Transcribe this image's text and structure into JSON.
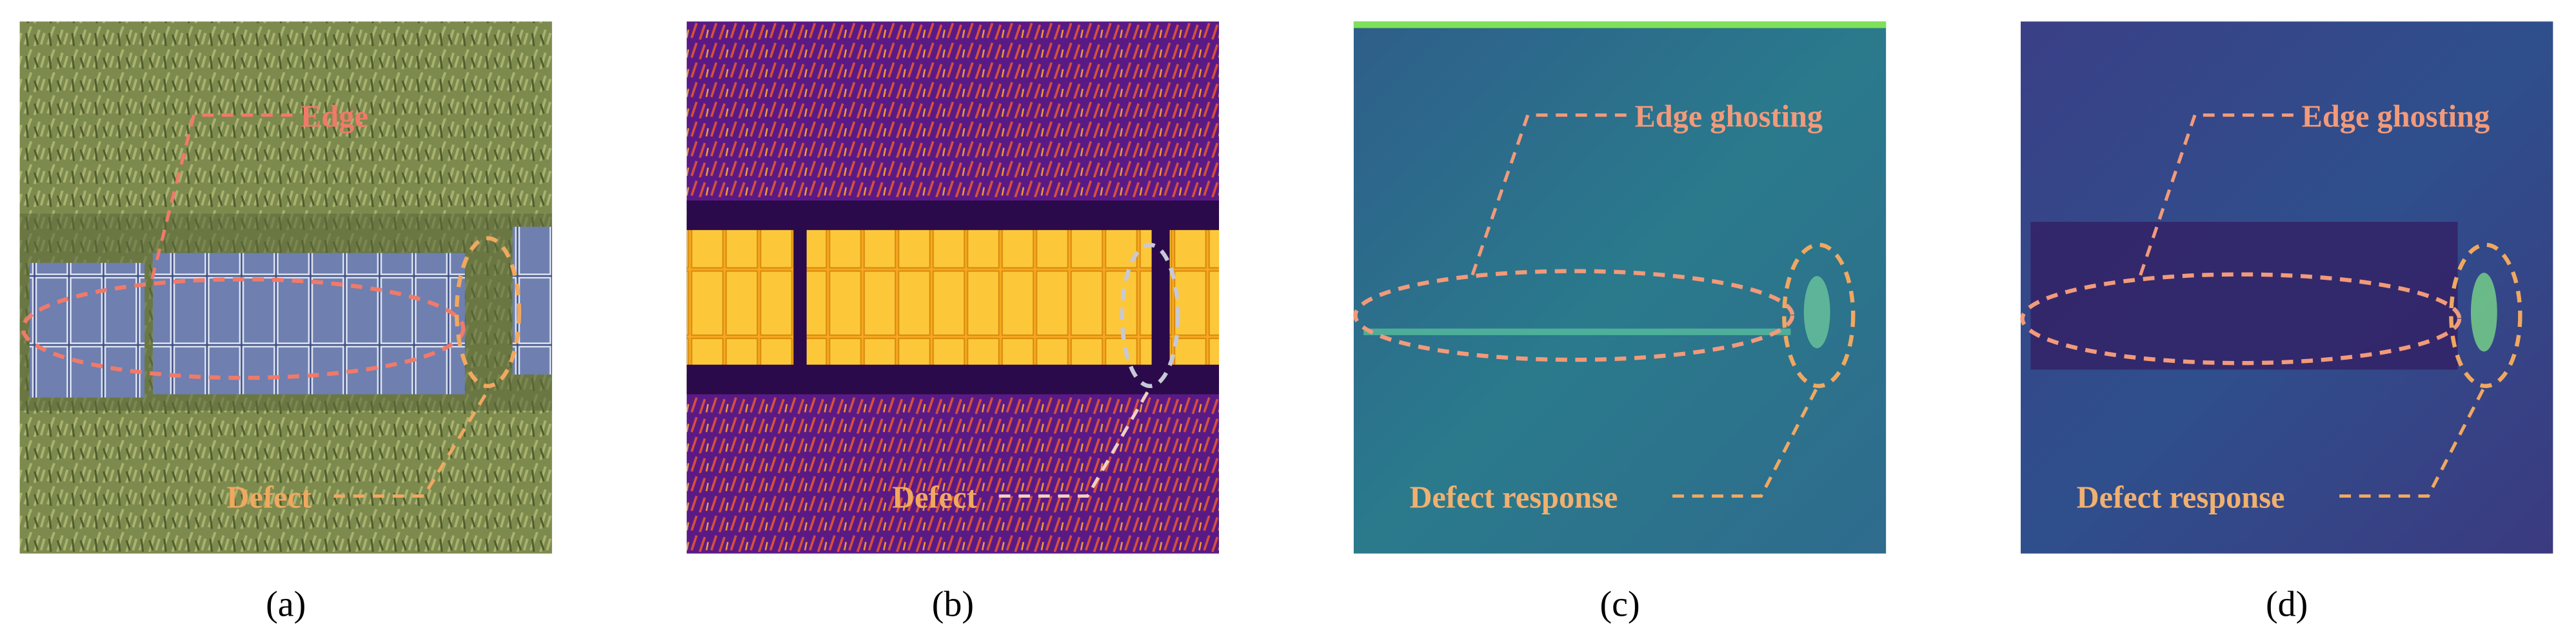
{
  "panels": [
    {
      "label": "(a)",
      "annotations": [
        "Edge",
        "Defect"
      ]
    },
    {
      "label": "(b)",
      "annotations": [
        "Defect"
      ]
    },
    {
      "label": "(c)",
      "annotations": [
        "Edge ghosting",
        "Defect response"
      ]
    },
    {
      "label": "(d)",
      "annotations": [
        "Edge ghosting",
        "Defect response"
      ]
    }
  ]
}
